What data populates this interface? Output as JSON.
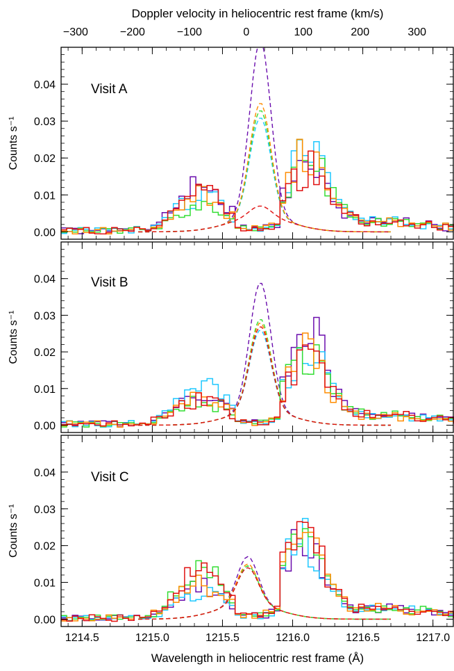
{
  "figure": {
    "top_axis_title": "Doppler velocity in heliocentric rest frame (km/s)",
    "bottom_axis_title": "Wavelength in heliocentric rest frame (Å)",
    "ylabel": "Counts s⁻¹"
  },
  "chart_data": [
    {
      "type": "line",
      "title": "Visit A",
      "xlabel": "Wavelength in heliocentric rest frame (Å)",
      "ylabel": "Counts s⁻¹",
      "xlim": [
        1214.35,
        1217.15
      ],
      "ylim": [
        -0.002,
        0.05
      ],
      "x_ticks": [
        "1214.5",
        "1215.0",
        "1215.5",
        "1216.0",
        "1216.5",
        "1217.0"
      ],
      "y_ticks": [
        "0.00",
        "0.01",
        "0.02",
        "0.03",
        "0.04"
      ],
      "top_axis": {
        "label": "Doppler velocity in heliocentric rest frame (km/s)",
        "ticks": [
          "−300",
          "−200",
          "−100",
          "0",
          "100",
          "200",
          "300"
        ]
      },
      "blue_peak_center": 1215.35,
      "red_peak_center": 1216.1,
      "series": [
        {
          "color": "#6a0dad",
          "step_blue_amp": 0.0125,
          "step_red_amp": 0.017,
          "model_peak": 0.048
        },
        {
          "color": "#1ec8ff",
          "step_blue_amp": 0.0095,
          "step_red_amp": 0.021,
          "model_peak": 0.027
        },
        {
          "color": "#33dd33",
          "step_blue_amp": 0.008,
          "step_red_amp": 0.02,
          "model_peak": 0.029
        },
        {
          "color": "#ff8c00",
          "step_blue_amp": 0.009,
          "step_red_amp": 0.019,
          "model_peak": 0.031
        },
        {
          "color": "#e01010",
          "step_blue_amp": 0.0105,
          "step_red_amp": 0.016,
          "model_peak": 0.003
        }
      ]
    },
    {
      "type": "line",
      "title": "Visit B",
      "xlabel": "Wavelength in heliocentric rest frame (Å)",
      "ylabel": "Counts s⁻¹",
      "xlim": [
        1214.35,
        1217.15
      ],
      "ylim": [
        -0.002,
        0.05
      ],
      "x_ticks": [
        "1214.5",
        "1215.0",
        "1215.5",
        "1216.0",
        "1216.5",
        "1217.0"
      ],
      "y_ticks": [
        "0.00",
        "0.01",
        "0.02",
        "0.03",
        "0.04"
      ],
      "blue_peak_center": 1215.35,
      "red_peak_center": 1216.1,
      "series": [
        {
          "color": "#6a0dad",
          "step_blue_amp": 0.008,
          "step_red_amp": 0.024,
          "model_peak": 0.035
        },
        {
          "color": "#1ec8ff",
          "step_blue_amp": 0.0105,
          "step_red_amp": 0.019,
          "model_peak": 0.022
        },
        {
          "color": "#33dd33",
          "step_blue_amp": 0.0065,
          "step_red_amp": 0.018,
          "model_peak": 0.025
        },
        {
          "color": "#ff8c00",
          "step_blue_amp": 0.0075,
          "step_red_amp": 0.018,
          "model_peak": 0.024
        },
        {
          "color": "#e01010",
          "step_blue_amp": 0.007,
          "step_red_amp": 0.017,
          "model_peak": 0.023
        }
      ]
    },
    {
      "type": "line",
      "title": "Visit C",
      "xlabel": "Wavelength in heliocentric rest frame (Å)",
      "ylabel": "Counts s⁻¹",
      "xlim": [
        1214.35,
        1217.15
      ],
      "ylim": [
        -0.002,
        0.05
      ],
      "x_ticks": [
        "1214.5",
        "1215.0",
        "1215.5",
        "1216.0",
        "1216.5",
        "1217.0"
      ],
      "y_ticks": [
        "0.00",
        "0.01",
        "0.02",
        "0.03",
        "0.04"
      ],
      "blue_peak_center": 1215.35,
      "red_peak_center": 1216.07,
      "series": [
        {
          "color": "#6a0dad",
          "step_blue_amp": 0.0085,
          "step_red_amp": 0.022,
          "model_peak": 0.013
        },
        {
          "color": "#1ec8ff",
          "step_blue_amp": 0.0075,
          "step_red_amp": 0.021,
          "model_peak": 0.01
        },
        {
          "color": "#33dd33",
          "step_blue_amp": 0.012,
          "step_red_amp": 0.019,
          "model_peak": 0.0105
        },
        {
          "color": "#ff8c00",
          "step_blue_amp": 0.01,
          "step_red_amp": 0.02,
          "model_peak": 0.011
        },
        {
          "color": "#e01010",
          "step_blue_amp": 0.0125,
          "step_red_amp": 0.023,
          "model_peak": 0.01
        }
      ]
    }
  ]
}
